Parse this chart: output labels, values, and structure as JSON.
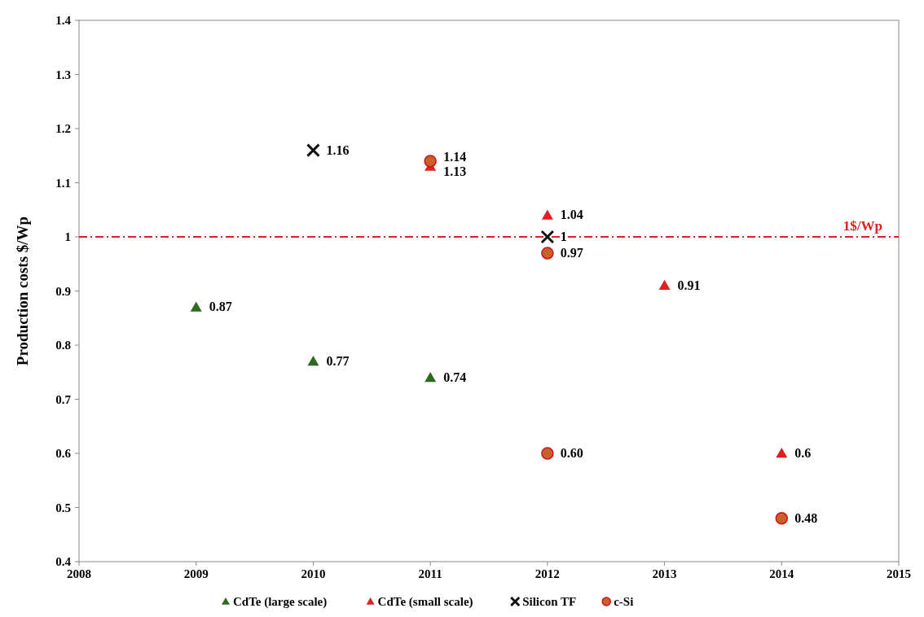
{
  "chart_data": {
    "type": "scatter",
    "ylabel": "Production costs $/Wp",
    "xlim": [
      2008,
      2015
    ],
    "xticks": [
      2008,
      2009,
      2010,
      2011,
      2012,
      2013,
      2014,
      2015
    ],
    "ylim": [
      0.4,
      1.4
    ],
    "yticks": [
      {
        "value": 0.4,
        "label": "0.4"
      },
      {
        "value": 0.5,
        "label": "0.5"
      },
      {
        "value": 0.6,
        "label": "0.6"
      },
      {
        "value": 0.7,
        "label": "0.7"
      },
      {
        "value": 0.8,
        "label": "0.8"
      },
      {
        "value": 0.9,
        "label": "0.9"
      },
      {
        "value": 1,
        "label": "1"
      },
      {
        "value": 1.1,
        "label": "1.1"
      },
      {
        "value": 1.2,
        "label": "1.2"
      },
      {
        "value": 1.3,
        "label": "1.3"
      },
      {
        "value": 1.4,
        "label": "1.4"
      }
    ],
    "grid": false,
    "legend": "bottom",
    "series": [
      {
        "name": "CdTe (large scale)",
        "color": "#2e6b1e",
        "marker": "triangle",
        "x": [
          2009,
          2010,
          2011
        ],
        "values": [
          0.87,
          0.77,
          0.74
        ],
        "value_labels": [
          "0.87",
          "0.77",
          "0.74"
        ]
      },
      {
        "name": "CdTe (small scale)",
        "color": "#e02020",
        "marker": "triangle",
        "x": [
          2011,
          2012,
          2013,
          2014
        ],
        "values": [
          1.13,
          1.04,
          0.91,
          0.6
        ],
        "value_labels": [
          "1.13",
          "1.04",
          "0.91",
          "0.6"
        ]
      },
      {
        "name": "Silicon TF",
        "color": "#111111",
        "marker": "cross",
        "x": [
          2010,
          2012
        ],
        "values": [
          1.16,
          1
        ],
        "value_labels": [
          "1.16",
          "1"
        ]
      },
      {
        "name": "c-Si",
        "color": "#c8602a",
        "marker": "circle",
        "x": [
          2011,
          2012,
          2012,
          2014
        ],
        "values": [
          1.14,
          0.97,
          0.6,
          0.48
        ],
        "value_labels": [
          "1.14",
          "0.97",
          "0.60",
          "0.48"
        ]
      }
    ],
    "ref_lines": [
      {
        "axis": "y",
        "value": 1,
        "label": "1$/Wp",
        "color": "#e02020",
        "line_style": "dashdot"
      }
    ]
  }
}
